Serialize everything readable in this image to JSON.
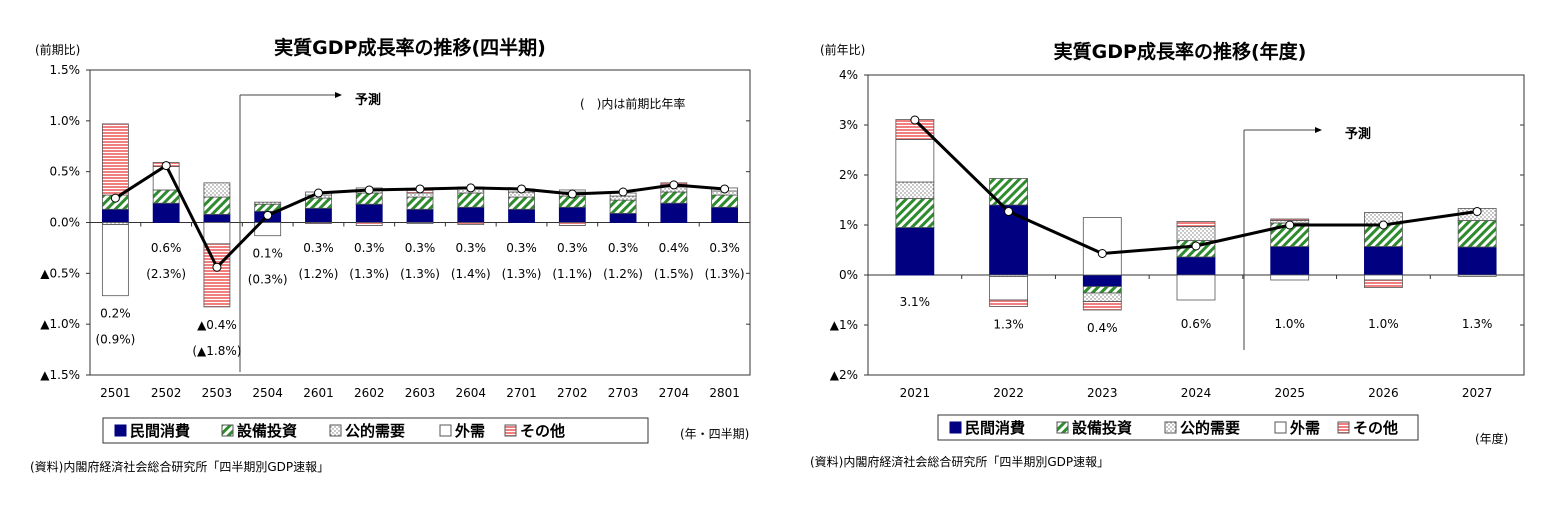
{
  "chart_data": [
    {
      "type": "bar",
      "stacked": true,
      "title": "実質GDP成長率の推移(四半期)",
      "ylabel": "(前期比)",
      "xlabel": "(年・四半期)",
      "source": "(資料)内閣府経済社会総合研究所「四半期別GDP速報」",
      "note": "(　)内は前期比年率",
      "forecast_label": "予測",
      "forecast_start": "2504",
      "ylim": [
        -1.5,
        1.5
      ],
      "yticks": [
        1.5,
        1.0,
        0.5,
        0.0,
        -0.5,
        -1.0,
        -1.5
      ],
      "ytick_labels": [
        "1.5%",
        "1.0%",
        "0.5%",
        "0.0%",
        "▲0.5%",
        "▲1.0%",
        "▲1.5%"
      ],
      "categories": [
        "2501",
        "2502",
        "2503",
        "2504",
        "2601",
        "2602",
        "2603",
        "2604",
        "2701",
        "2702",
        "2703",
        "2704",
        "2801"
      ],
      "series": [
        {
          "name": "民間消費",
          "values": [
            0.13,
            0.19,
            0.08,
            0.11,
            0.14,
            0.18,
            0.13,
            0.15,
            0.13,
            0.15,
            0.09,
            0.19,
            0.15
          ]
        },
        {
          "name": "設備投資",
          "values": [
            0.14,
            0.13,
            0.17,
            0.07,
            0.1,
            0.11,
            0.12,
            0.14,
            0.12,
            0.11,
            0.13,
            0.11,
            0.12
          ]
        },
        {
          "name": "公的需要",
          "values": [
            -0.02,
            0,
            0.14,
            0.02,
            0.03,
            0.03,
            0.04,
            0.04,
            0.05,
            0.04,
            0.04,
            0.05,
            0.04
          ]
        },
        {
          "name": "外需",
          "values": [
            -0.7,
            0.23,
            -0.21,
            -0.13,
            0.03,
            0.02,
            -0.01,
            0.02,
            0.03,
            0.02,
            0.03,
            0.02,
            0.03
          ]
        },
        {
          "name": "その他",
          "values": [
            0.7,
            0.04,
            -0.62,
            0,
            -0.01,
            -0.03,
            0.03,
            -0.02,
            0,
            -0.03,
            0,
            0.02,
            0
          ]
        }
      ],
      "line": {
        "values": [
          0.24,
          0.56,
          -0.44,
          0.07,
          0.29,
          0.32,
          0.33,
          0.34,
          0.33,
          0.28,
          0.3,
          0.37,
          0.33
        ]
      },
      "data_labels": [
        "0.2%",
        "0.6%",
        "▲0.4%",
        "0.1%",
        "0.3%",
        "0.3%",
        "0.3%",
        "0.3%",
        "0.3%",
        "0.3%",
        "0.3%",
        "0.4%",
        "0.3%"
      ],
      "data_labels_annualized": [
        "(0.9%)",
        "(2.3%)",
        "(▲1.8%)",
        "(0.3%)",
        "(1.2%)",
        "(1.3%)",
        "(1.3%)",
        "(1.4%)",
        "(1.3%)",
        "(1.1%)",
        "(1.2%)",
        "(1.5%)",
        "(1.3%)"
      ],
      "legend": "bottom"
    },
    {
      "type": "bar",
      "stacked": true,
      "title": "実質GDP成長率の推移(年度)",
      "ylabel": "(前年比)",
      "xlabel": "(年度)",
      "source": "(資料)内閣府経済社会総合研究所「四半期別GDP速報」",
      "forecast_label": "予測",
      "forecast_start": "2025",
      "ylim": [
        -2,
        4
      ],
      "yticks": [
        4,
        3,
        2,
        1,
        0,
        -1,
        -2
      ],
      "ytick_labels": [
        "4%",
        "3%",
        "2%",
        "1%",
        "0%",
        "▲1%",
        "▲2%"
      ],
      "categories": [
        "2021",
        "2022",
        "2023",
        "2024",
        "2025",
        "2026",
        "2027"
      ],
      "series": [
        {
          "name": "民間消費",
          "values": [
            0.95,
            1.4,
            -0.23,
            0.36,
            0.57,
            0.57,
            0.56
          ]
        },
        {
          "name": "設備投資",
          "values": [
            0.58,
            0.53,
            -0.13,
            0.33,
            0.47,
            0.45,
            0.53
          ]
        },
        {
          "name": "公的需要",
          "values": [
            0.33,
            -0.03,
            -0.17,
            0.28,
            0.05,
            0.23,
            0.24
          ]
        },
        {
          "name": "外需",
          "values": [
            0.85,
            -0.47,
            1.15,
            -0.5,
            -0.1,
            -0.1,
            -0.03
          ]
        },
        {
          "name": "その他",
          "values": [
            0.4,
            -0.13,
            -0.17,
            0.1,
            0.03,
            -0.15,
            0
          ]
        }
      ],
      "line": {
        "values": [
          3.1,
          1.27,
          0.43,
          0.58,
          1.0,
          1.0,
          1.27
        ]
      },
      "data_labels": [
        "3.1%",
        "1.3%",
        "0.4%",
        "0.6%",
        "1.0%",
        "1.0%",
        "1.3%"
      ],
      "legend": "bottom"
    }
  ],
  "colors": {
    "民間消費": "#000080",
    "設備投資": "#2e8b2e",
    "公的需要": "#888888",
    "外需": "#ffffff",
    "その他": "#f08080",
    "line": "#000000"
  }
}
